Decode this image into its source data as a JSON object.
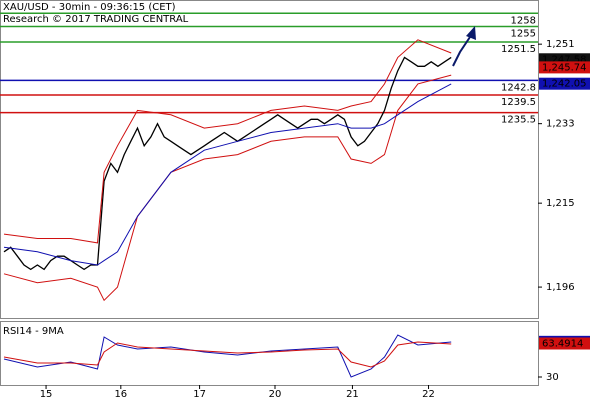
{
  "chart_data": [
    {
      "type": "line",
      "title": "XAU/USD - 30min - 09:36:15 (CET)",
      "subtitle": "Research © 2017 TRADING CENTRAL",
      "xlim": [
        -0.6,
        80
      ],
      "ylim": [
        1189,
        1261
      ],
      "yticks": [
        {
          "value": 1251,
          "label": "1,251"
        },
        {
          "value": 1233,
          "label": "1,233"
        },
        {
          "value": 1215,
          "label": "1,215"
        },
        {
          "value": 1196,
          "label": "1,196"
        }
      ],
      "levels": [
        {
          "value": 1258,
          "color": "#2a9d2a"
        },
        {
          "value": 1255,
          "color": "#2a9d2a"
        },
        {
          "value": 1251.5,
          "color": "#2a9d2a"
        },
        {
          "value": 1242.8,
          "color": "#1010b0"
        },
        {
          "value": 1239.5,
          "color": "#d01010"
        },
        {
          "value": 1235.5,
          "color": "#d01010"
        }
      ],
      "series": [
        {
          "color": "#000000",
          "values": [
            1204,
            1205,
            1203,
            1201,
            1200,
            1201,
            1200,
            1202,
            1203,
            1203,
            1202,
            1201,
            1200,
            1201,
            1201,
            1220,
            1224,
            1222,
            1226,
            1229,
            1232,
            1228,
            1230,
            1233,
            1230,
            1229,
            1228,
            1227,
            1226,
            1227,
            1228,
            1229,
            1230,
            1231,
            1230,
            1229,
            1230,
            1231,
            1232,
            1233,
            1234,
            1235,
            1234,
            1233,
            1232,
            1233,
            1234,
            1234,
            1233,
            1234,
            1235,
            1234,
            1230,
            1228,
            1229,
            1231,
            1233,
            1236,
            1241,
            1245,
            1248,
            1247,
            1246,
            1246,
            1247,
            1246,
            1247,
            1248
          ]
        },
        {
          "color": "#d01010",
          "x": [
            0,
            5,
            10,
            14,
            15,
            17,
            20,
            25,
            30,
            35,
            40,
            45,
            50,
            52,
            55,
            57,
            59,
            62,
            67
          ],
          "values": [
            1208,
            1207,
            1207,
            1206,
            1222,
            1228,
            1236,
            1235,
            1232,
            1233,
            1236,
            1237,
            1236,
            1237,
            1238,
            1242,
            1248,
            1252,
            1249
          ]
        },
        {
          "color": "#d01010",
          "x": [
            0,
            5,
            10,
            14,
            15,
            17,
            20,
            25,
            30,
            35,
            40,
            45,
            50,
            52,
            55,
            57,
            59,
            62,
            67
          ],
          "values": [
            1199,
            1197,
            1198,
            1196,
            1193,
            1196,
            1212,
            1222,
            1225,
            1226,
            1229,
            1230,
            1230,
            1225,
            1224,
            1226,
            1236,
            1242,
            1244
          ]
        },
        {
          "color": "#1010b0",
          "x": [
            0,
            5,
            10,
            14,
            15,
            17,
            20,
            25,
            30,
            35,
            40,
            45,
            50,
            52,
            55,
            57,
            59,
            62,
            67
          ],
          "values": [
            1205,
            1204,
            1202,
            1201,
            1202,
            1204,
            1212,
            1222,
            1227,
            1229,
            1231,
            1232,
            1233,
            1232,
            1232,
            1233,
            1235,
            1238,
            1242
          ]
        }
      ],
      "last_labels": [
        {
          "value": 1247.58,
          "label": "1,247.58",
          "color": "#111111"
        },
        {
          "value": 1245.74,
          "label": "1,245.74",
          "color": "#d01010"
        },
        {
          "value": 1242.05,
          "label": "1,242.05",
          "color": "#1010b0"
        }
      ]
    },
    {
      "type": "line",
      "title": "RSI14 - 9MA",
      "xlim": [
        -0.6,
        80
      ],
      "ylim": [
        22,
        85
      ],
      "yticks": [
        30
      ],
      "xticks": [
        {
          "value": 6.3,
          "label": "15"
        },
        {
          "value": 17.5,
          "label": "16"
        },
        {
          "value": 29.3,
          "label": "17"
        },
        {
          "value": 40.6,
          "label": "20"
        },
        {
          "value": 52.2,
          "label": "21"
        },
        {
          "value": 63.6,
          "label": "22"
        }
      ],
      "series": [
        {
          "color": "#1010b0",
          "x": [
            0,
            5,
            10,
            14,
            15,
            17,
            20,
            25,
            30,
            35,
            40,
            45,
            50,
            52,
            55,
            57,
            59,
            62,
            67
          ],
          "values": [
            48,
            40,
            45,
            38,
            70,
            62,
            58,
            60,
            55,
            52,
            56,
            58,
            60,
            30,
            38,
            50,
            72,
            62,
            65
          ]
        },
        {
          "color": "#d01010",
          "x": [
            0,
            5,
            10,
            14,
            15,
            17,
            20,
            25,
            30,
            35,
            40,
            45,
            50,
            52,
            55,
            57,
            59,
            62,
            67
          ],
          "values": [
            50,
            44,
            44,
            42,
            55,
            64,
            60,
            58,
            56,
            54,
            55,
            57,
            58,
            45,
            40,
            46,
            62,
            65,
            63
          ]
        }
      ],
      "last_labels": [
        {
          "value": 65.164,
          "color": "#1010b0"
        },
        {
          "value": 63.4914,
          "color": "#d01010"
        }
      ]
    }
  ]
}
